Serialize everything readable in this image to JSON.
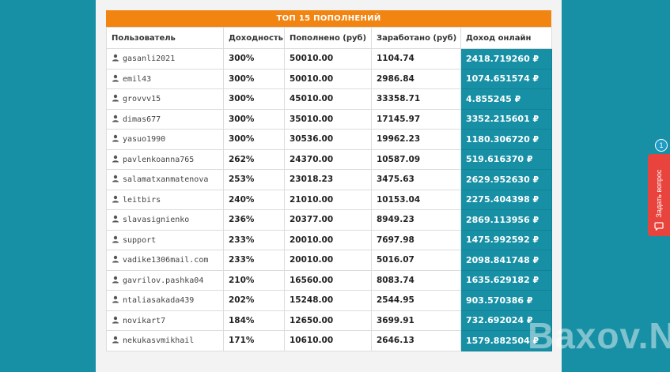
{
  "table": {
    "title": "ТОП 15 ПОПОЛНЕНИЙ",
    "columns": [
      "Пользователь",
      "Доходность",
      "Пополнено (руб)",
      "Заработано (руб)",
      "Доход онлайн"
    ],
    "rows": [
      {
        "user": "gasanli2021",
        "yield": "300%",
        "deposited": "50010.00",
        "earned": "1104.74",
        "income": "2418.719260 ₽"
      },
      {
        "user": "emil43",
        "yield": "300%",
        "deposited": "50010.00",
        "earned": "2986.84",
        "income": "1074.651574 ₽"
      },
      {
        "user": "grovvv15",
        "yield": "300%",
        "deposited": "45010.00",
        "earned": "33358.71",
        "income": "4.855245 ₽"
      },
      {
        "user": "dimas677",
        "yield": "300%",
        "deposited": "35010.00",
        "earned": "17145.97",
        "income": "3352.215601 ₽"
      },
      {
        "user": "yasuo1990",
        "yield": "300%",
        "deposited": "30536.00",
        "earned": "19962.23",
        "income": "1180.306720 ₽"
      },
      {
        "user": "pavlenkoanna765",
        "yield": "262%",
        "deposited": "24370.00",
        "earned": "10587.09",
        "income": "519.616370 ₽"
      },
      {
        "user": "salamatxanmatenova",
        "yield": "253%",
        "deposited": "23018.23",
        "earned": "3475.63",
        "income": "2629.952630 ₽"
      },
      {
        "user": "leitbirs",
        "yield": "240%",
        "deposited": "21010.00",
        "earned": "10153.04",
        "income": "2275.404398 ₽"
      },
      {
        "user": "slavasignienko",
        "yield": "236%",
        "deposited": "20377.00",
        "earned": "8949.23",
        "income": "2869.113956 ₽"
      },
      {
        "user": "support",
        "yield": "233%",
        "deposited": "20010.00",
        "earned": "7697.98",
        "income": "1475.992592 ₽"
      },
      {
        "user": "vadike1306mail.com",
        "yield": "233%",
        "deposited": "20010.00",
        "earned": "5016.07",
        "income": "2098.841748 ₽"
      },
      {
        "user": "gavrilov.pashka04",
        "yield": "210%",
        "deposited": "16560.00",
        "earned": "8083.74",
        "income": "1635.629182 ₽"
      },
      {
        "user": "ntaliasakada439",
        "yield": "202%",
        "deposited": "15248.00",
        "earned": "2544.95",
        "income": "903.570386 ₽"
      },
      {
        "user": "novikart7",
        "yield": "184%",
        "deposited": "12650.00",
        "earned": "3699.91",
        "income": "732.692024 ₽"
      },
      {
        "user": "nekukasvmikhail",
        "yield": "171%",
        "deposited": "10610.00",
        "earned": "2646.13",
        "income": "1579.882504 ₽"
      }
    ]
  },
  "widget": {
    "label": "Задать вопрос",
    "badge": "1",
    "icon": "chat-icon"
  },
  "watermark": "Baxov.Net",
  "icons": {
    "user": "user-icon"
  },
  "colors": {
    "background": "#1790a6",
    "header": "#f28411",
    "income_cell": "#1790a6",
    "ask_tab": "#e8443d"
  }
}
